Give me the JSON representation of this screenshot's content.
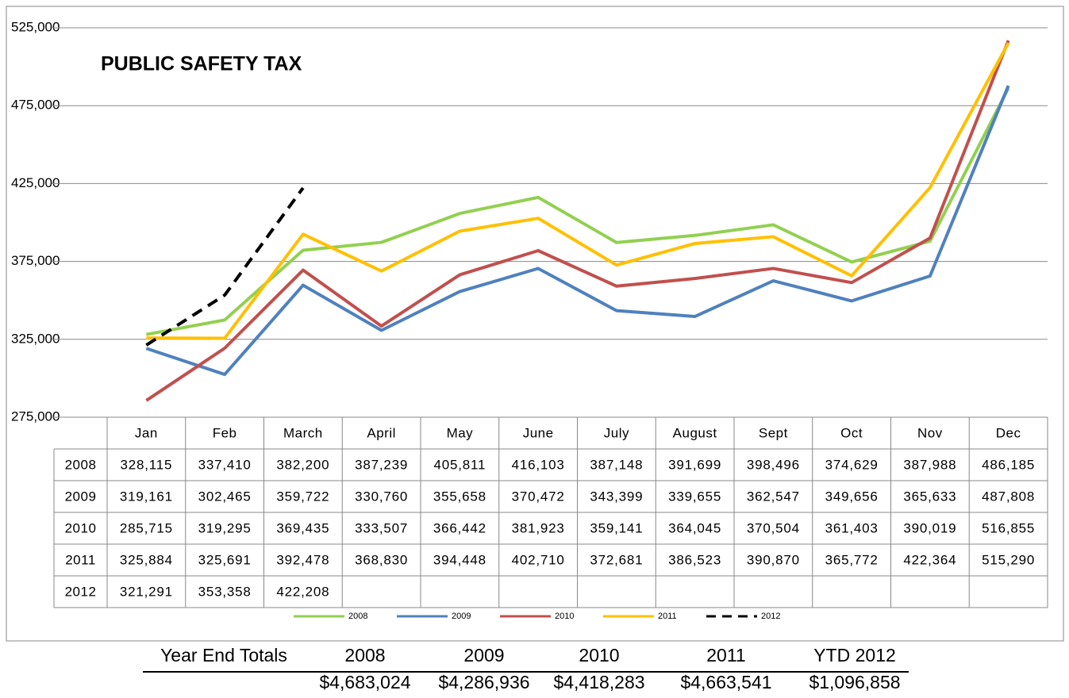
{
  "chart_data": {
    "type": "line",
    "title": "PUBLIC SAFETY TAX",
    "categories": [
      "Jan",
      "Feb",
      "March",
      "April",
      "May",
      "June",
      "July",
      "August",
      "Sept",
      "Oct",
      "Nov",
      "Dec"
    ],
    "series": [
      {
        "name": "2008",
        "color": "#92d050",
        "dashed": false,
        "values": [
          328115,
          337410,
          382200,
          387239,
          405811,
          416103,
          387148,
          391699,
          398496,
          374629,
          387988,
          486185
        ],
        "value_labels": [
          "328,115",
          "337,410",
          "382,200",
          "387,239",
          "405,811",
          "416,103",
          "387,148",
          "391,699",
          "398,496",
          "374,629",
          "387,988",
          "486,185"
        ]
      },
      {
        "name": "2009",
        "color": "#4f81bd",
        "dashed": false,
        "values": [
          319161,
          302465,
          359722,
          330760,
          355658,
          370472,
          343399,
          339655,
          362547,
          349656,
          365633,
          487808
        ],
        "value_labels": [
          "319,161",
          "302,465",
          "359,722",
          "330,760",
          "355,658",
          "370,472",
          "343,399",
          "339,655",
          "362,547",
          "349,656",
          "365,633",
          "487,808"
        ]
      },
      {
        "name": "2010",
        "color": "#c0504d",
        "dashed": false,
        "values": [
          285715,
          319295,
          369435,
          333507,
          366442,
          381923,
          359141,
          364045,
          370504,
          361403,
          390019,
          516855
        ],
        "value_labels": [
          "285,715",
          "319,295",
          "369,435",
          "333,507",
          "366,442",
          "381,923",
          "359,141",
          "364,045",
          "370,504",
          "361,403",
          "390,019",
          "516,855"
        ]
      },
      {
        "name": "2011",
        "color": "#ffc000",
        "dashed": false,
        "values": [
          325884,
          325691,
          392478,
          368830,
          394448,
          402710,
          372681,
          386523,
          390870,
          365772,
          422364,
          515290
        ],
        "value_labels": [
          "325,884",
          "325,691",
          "392,478",
          "368,830",
          "394,448",
          "402,710",
          "372,681",
          "386,523",
          "390,870",
          "365,772",
          "422,364",
          "515,290"
        ]
      },
      {
        "name": "2012",
        "color": "#000000",
        "dashed": true,
        "values": [
          321291,
          353358,
          422208,
          null,
          null,
          null,
          null,
          null,
          null,
          null,
          null,
          null
        ],
        "value_labels": [
          "321,291",
          "353,358",
          "422,208",
          null,
          null,
          null,
          null,
          null,
          null,
          null,
          null,
          null
        ]
      }
    ],
    "ylim": [
      275000,
      525000
    ],
    "yticks": [
      {
        "value": 275000,
        "label": "275,000"
      },
      {
        "value": 325000,
        "label": "325,000"
      },
      {
        "value": 375000,
        "label": "375,000"
      },
      {
        "value": 425000,
        "label": "425,000"
      },
      {
        "value": 475000,
        "label": "475,000"
      },
      {
        "value": 525000,
        "label": "525,000"
      }
    ],
    "grid": true,
    "legend": "bottom"
  },
  "totals": {
    "title": "Year End Totals",
    "headers": [
      "2008",
      "2009",
      "2010",
      "2011",
      "YTD 2012"
    ],
    "values": [
      "$4,683,024",
      "$4,286,936",
      "$4,418,283",
      "$4,663,541",
      "$1,096,858"
    ]
  }
}
